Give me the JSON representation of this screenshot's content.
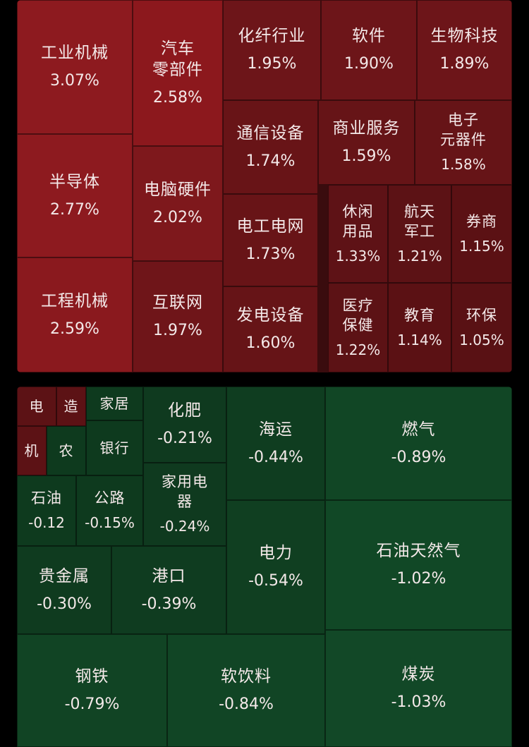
{
  "chart_data": {
    "type": "treemap",
    "gainers": [
      {
        "name": "工业机械",
        "change": "3.07%",
        "value": 3.07,
        "color": "#8d1a1f"
      },
      {
        "name": "汽车\n零部件",
        "change": "2.58%",
        "value": 2.58,
        "color": "#8c181d"
      },
      {
        "name": "化纤行业",
        "change": "1.95%",
        "value": 1.95,
        "color": "#6d1519"
      },
      {
        "name": "软件",
        "change": "1.90%",
        "value": 1.9,
        "color": "#6d1519"
      },
      {
        "name": "生物科技",
        "change": "1.89%",
        "value": 1.89,
        "color": "#6d1519"
      },
      {
        "name": "半导体",
        "change": "2.77%",
        "value": 2.77,
        "color": "#8d1a1f"
      },
      {
        "name": "电脑硬件",
        "change": "2.02%",
        "value": 2.02,
        "color": "#7e181c"
      },
      {
        "name": "通信设备",
        "change": "1.74%",
        "value": 1.74,
        "color": "#681417"
      },
      {
        "name": "商业服务",
        "change": "1.59%",
        "value": 1.59,
        "color": "#661417"
      },
      {
        "name": "电子\n元器件",
        "change": "1.58%",
        "value": 1.58,
        "color": "#661417"
      },
      {
        "name": "电工电网",
        "change": "1.73%",
        "value": 1.73,
        "color": "#681417"
      },
      {
        "name": "休闲\n用品",
        "change": "1.33%",
        "value": 1.33,
        "color": "#5e1216"
      },
      {
        "name": "航天\n军工",
        "change": "1.21%",
        "value": 1.21,
        "color": "#5c1215"
      },
      {
        "name": "券商",
        "change": "1.15%",
        "value": 1.15,
        "color": "#5b1114"
      },
      {
        "name": "工程机械",
        "change": "2.59%",
        "value": 2.59,
        "color": "#8a191e"
      },
      {
        "name": "互联网",
        "change": "1.97%",
        "value": 1.97,
        "color": "#6f1519"
      },
      {
        "name": "发电设备",
        "change": "1.60%",
        "value": 1.6,
        "color": "#661417"
      },
      {
        "name": "医疗\n保健",
        "change": "1.22%",
        "value": 1.22,
        "color": "#5c1215"
      },
      {
        "name": "教育",
        "change": "1.14%",
        "value": 1.14,
        "color": "#5b1114"
      },
      {
        "name": "环保",
        "change": "1.05%",
        "value": 1.05,
        "color": "#591114"
      }
    ],
    "losers": [
      {
        "name": "电",
        "change": "",
        "color": "#5c1215"
      },
      {
        "name": "造",
        "change": "",
        "color": "#5c1215"
      },
      {
        "name": "家居",
        "change": "",
        "color": "#0e3a1e"
      },
      {
        "name": "机",
        "change": "",
        "color": "#5c1215"
      },
      {
        "name": "农",
        "change": "",
        "color": "#0e3a1e"
      },
      {
        "name": "银行",
        "change": "",
        "color": "#0e3a1e"
      },
      {
        "name": "化肥",
        "change": "-0.21%",
        "value": -0.21,
        "color": "#0f3a1f"
      },
      {
        "name": "海运",
        "change": "-0.44%",
        "value": -0.44,
        "color": "#0f3d20"
      },
      {
        "name": "燃气",
        "change": "-0.89%",
        "value": -0.89,
        "color": "#114625"
      },
      {
        "name": "石油",
        "change": "-0.12",
        "value": -0.12,
        "color": "#0e3a1e"
      },
      {
        "name": "公路",
        "change": "-0.15%",
        "value": -0.15,
        "color": "#0e3a1e"
      },
      {
        "name": "家用电\n器",
        "change": "-0.24%",
        "value": -0.24,
        "color": "#0f3a1f"
      },
      {
        "name": "电力",
        "change": "-0.54%",
        "value": -0.54,
        "color": "#103f21"
      },
      {
        "name": "石油天然气",
        "change": "-1.02%",
        "value": -1.02,
        "color": "#114826"
      },
      {
        "name": "贵金属",
        "change": "-0.30%",
        "value": -0.3,
        "color": "#0f3b1f"
      },
      {
        "name": "港口",
        "change": "-0.39%",
        "value": -0.39,
        "color": "#0f3c20"
      },
      {
        "name": "钢铁",
        "change": "-0.79%",
        "value": -0.79,
        "color": "#114424"
      },
      {
        "name": "软饮料",
        "change": "-0.84%",
        "value": -0.84,
        "color": "#114525"
      },
      {
        "name": "煤炭",
        "change": "-1.03%",
        "value": -1.03,
        "color": "#124827"
      }
    ]
  }
}
